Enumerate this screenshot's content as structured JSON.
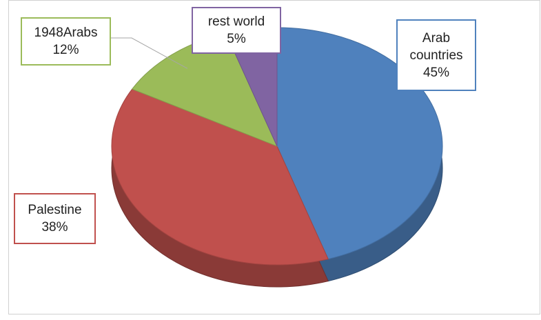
{
  "chart_data": {
    "type": "pie",
    "categories": [
      "Arab countries",
      "Palestine",
      "1948Arabs",
      "rest world"
    ],
    "values": [
      45,
      38,
      12,
      5
    ],
    "value_labels": [
      "45%",
      "38%",
      "12%",
      "5%"
    ],
    "colors": [
      "#4f81bd",
      "#c0504d",
      "#9bbb59",
      "#8064a2"
    ]
  }
}
